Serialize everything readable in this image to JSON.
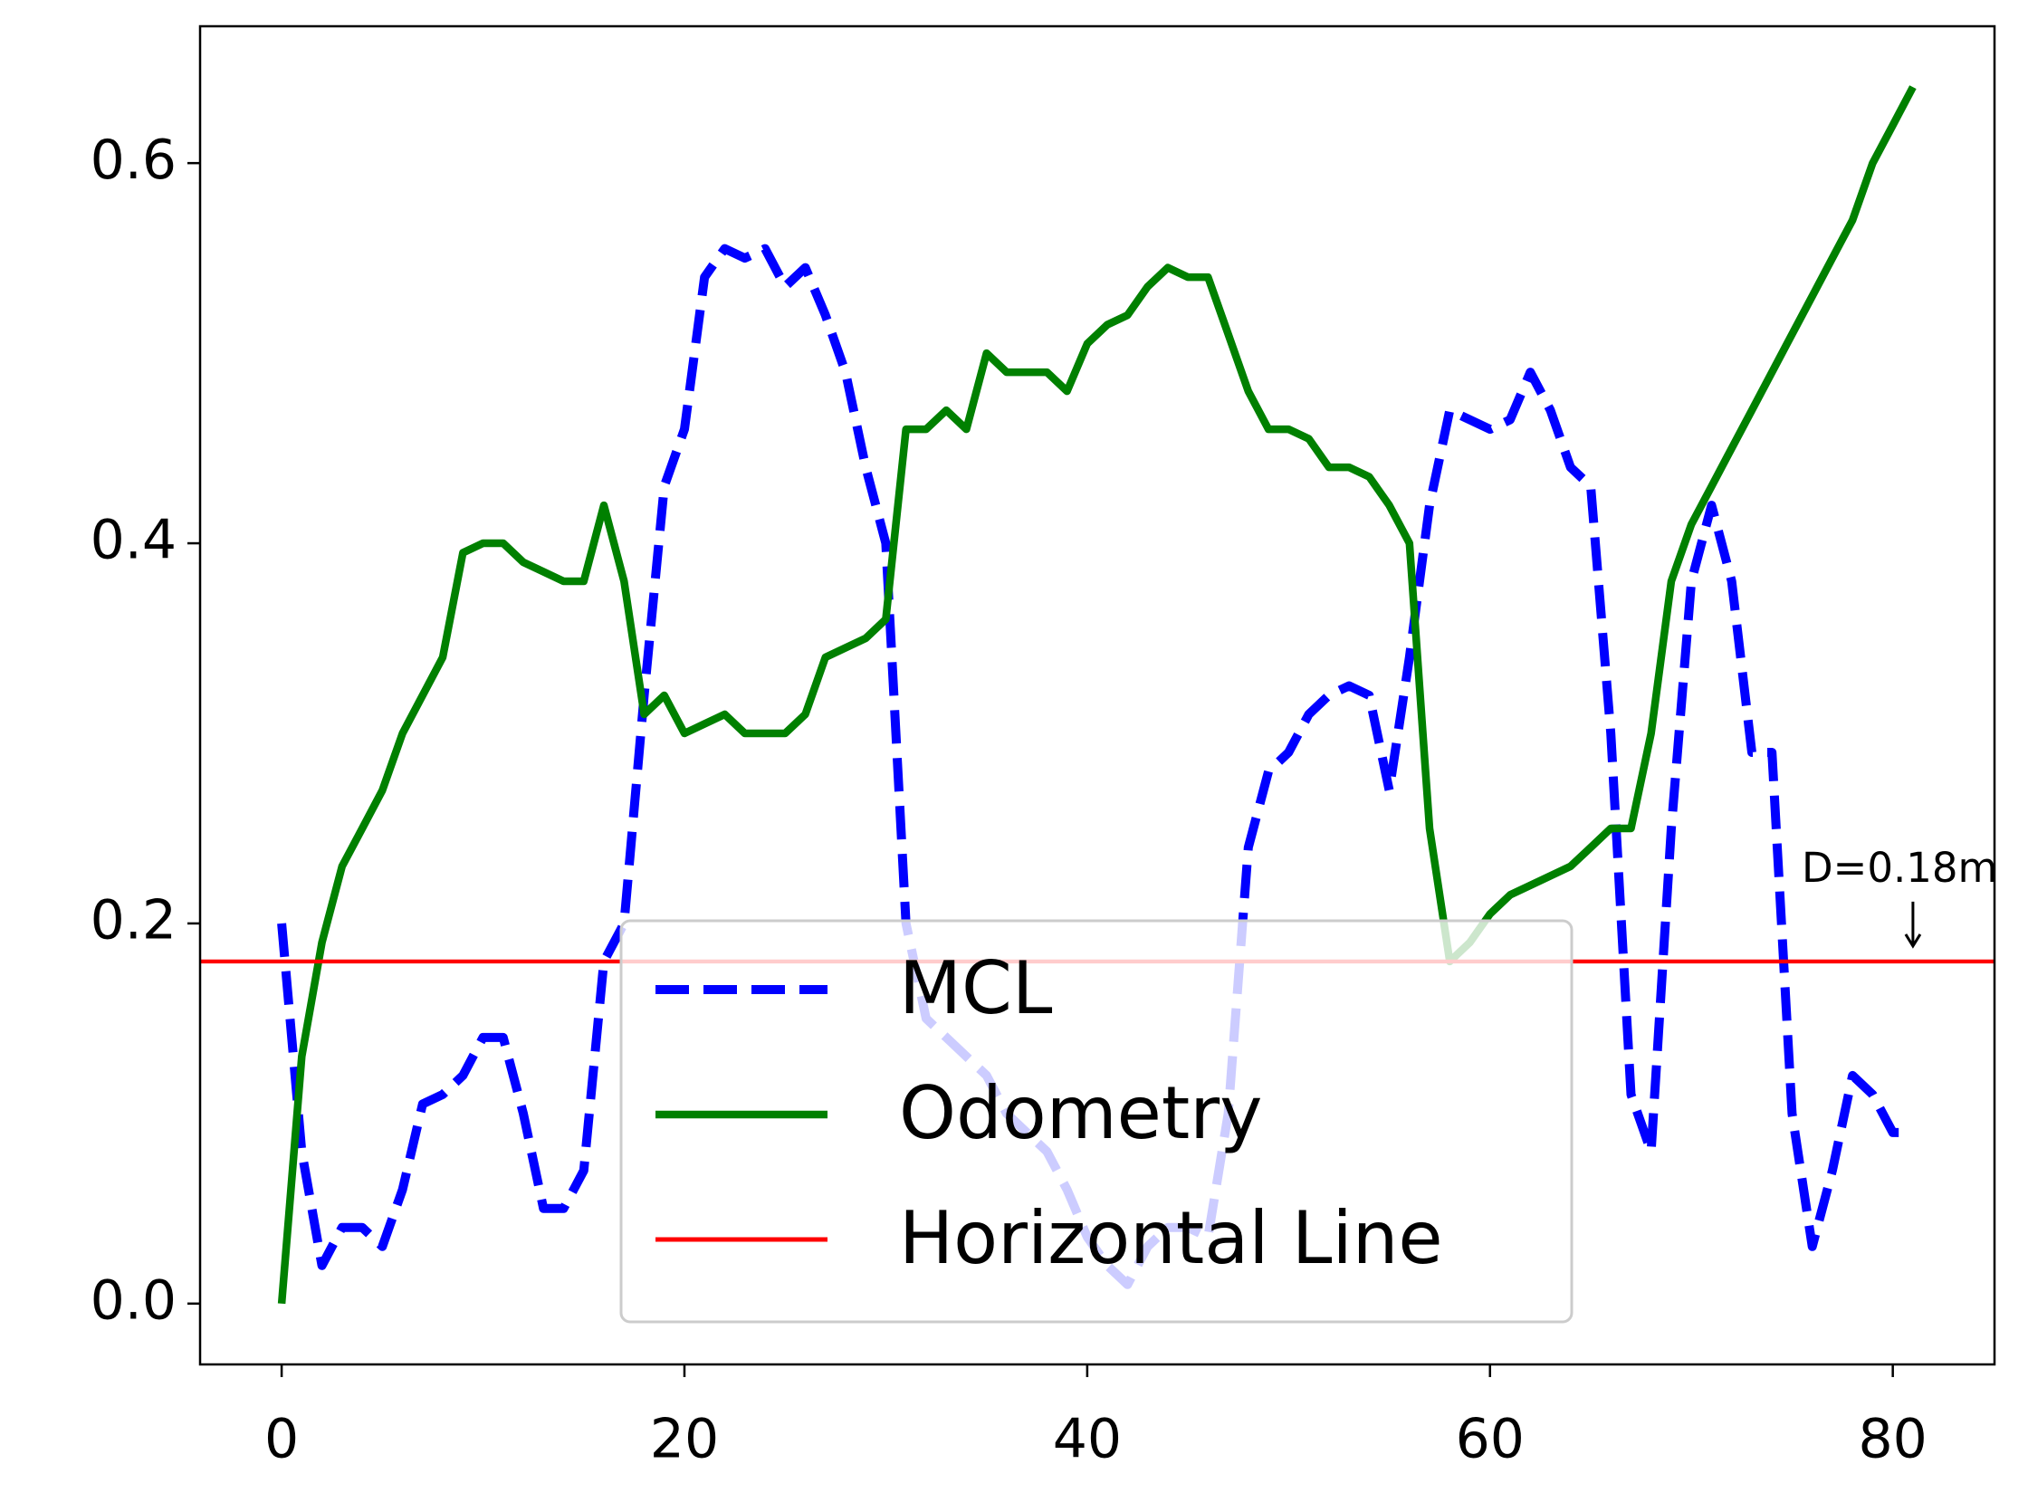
{
  "chart_data": {
    "type": "line",
    "x": [
      0,
      1,
      2,
      3,
      4,
      5,
      6,
      7,
      8,
      9,
      10,
      11,
      12,
      13,
      14,
      15,
      16,
      17,
      18,
      19,
      20,
      21,
      22,
      23,
      24,
      25,
      26,
      27,
      28,
      29,
      30,
      31,
      32,
      33,
      34,
      35,
      36,
      37,
      38,
      39,
      40,
      41,
      42,
      43,
      44,
      45,
      46,
      47,
      48,
      49,
      50,
      51,
      52,
      53,
      54,
      55,
      56,
      57,
      58,
      59,
      60,
      61,
      62,
      63,
      64,
      65,
      66,
      67,
      68,
      69,
      70,
      71,
      72,
      73,
      74,
      75,
      76,
      77,
      78,
      79,
      80,
      81
    ],
    "series": [
      {
        "name": "MCL",
        "color": "#0000ff",
        "style": "dashed",
        "values": [
          0.2,
          0.08,
          0.02,
          0.04,
          0.04,
          0.03,
          0.06,
          0.105,
          0.11,
          0.12,
          0.14,
          0.14,
          0.1,
          0.05,
          0.05,
          0.07,
          0.18,
          0.2,
          0.32,
          0.43,
          0.46,
          0.54,
          0.555,
          0.55,
          0.555,
          0.535,
          0.545,
          0.52,
          0.49,
          0.44,
          0.4,
          0.2,
          0.15,
          0.14,
          0.13,
          0.12,
          0.1,
          0.09,
          0.08,
          0.06,
          0.035,
          0.02,
          0.01,
          0.03,
          0.04,
          0.04,
          0.035,
          0.1,
          0.24,
          0.28,
          0.29,
          0.31,
          0.32,
          0.325,
          0.32,
          0.27,
          0.34,
          0.42,
          0.47,
          0.465,
          0.46,
          0.465,
          0.49,
          0.47,
          0.44,
          0.43,
          0.3,
          0.11,
          0.08,
          0.25,
          0.38,
          0.42,
          0.38,
          0.29,
          0.29,
          0.1,
          0.03,
          0.07,
          0.12,
          0.11,
          0.09,
          0.09
        ]
      },
      {
        "name": "Odometry",
        "color": "#008000",
        "style": "solid",
        "values": [
          0.0,
          0.13,
          0.19,
          0.23,
          0.25,
          0.27,
          0.3,
          0.32,
          0.34,
          0.395,
          0.4,
          0.4,
          0.39,
          0.385,
          0.38,
          0.38,
          0.42,
          0.38,
          0.31,
          0.32,
          0.3,
          0.305,
          0.31,
          0.3,
          0.3,
          0.3,
          0.31,
          0.34,
          0.345,
          0.35,
          0.36,
          0.46,
          0.46,
          0.47,
          0.46,
          0.5,
          0.49,
          0.49,
          0.49,
          0.48,
          0.505,
          0.515,
          0.52,
          0.535,
          0.545,
          0.54,
          0.54,
          0.51,
          0.48,
          0.46,
          0.46,
          0.455,
          0.44,
          0.44,
          0.435,
          0.42,
          0.4,
          0.25,
          0.18,
          0.19,
          0.205,
          0.215,
          0.22,
          0.225,
          0.23,
          0.24,
          0.25,
          0.25,
          0.3,
          0.38,
          0.41,
          0.43,
          0.45,
          0.47,
          0.49,
          0.51,
          0.53,
          0.55,
          0.57,
          0.6,
          0.62,
          0.64
        ]
      }
    ],
    "hline": {
      "name": "Horizontal Line",
      "value": 0.18,
      "color": "#ff0000"
    },
    "annotation": "D=0.18m",
    "xlim": [
      -4.05,
      85.05
    ],
    "xticks": [
      0,
      20,
      40,
      60,
      80
    ],
    "ylim": [
      -0.032,
      0.672
    ],
    "yticks": [
      {
        "value": 0,
        "label": "0.0"
      },
      0.2,
      0.4,
      0.6
    ],
    "grid": false
  }
}
